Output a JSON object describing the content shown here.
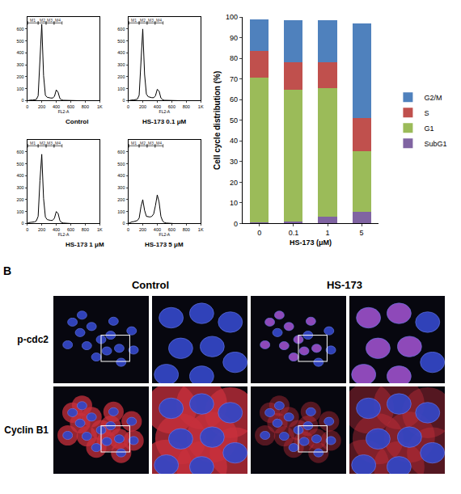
{
  "chart_data": [
    {
      "type": "line",
      "title": "Control",
      "x_label": "FL2-A",
      "color": "#000000",
      "x": [
        0,
        25,
        50,
        75,
        100,
        125,
        150,
        175,
        200,
        225,
        250,
        275,
        300,
        325,
        350,
        375,
        400,
        425,
        450,
        475,
        500,
        525,
        550,
        575,
        600,
        625,
        650,
        675,
        700,
        725,
        750,
        775,
        800,
        825,
        850,
        875,
        900,
        925,
        950,
        975,
        1000
      ],
      "values": [
        0,
        4,
        5,
        5,
        6,
        10,
        40,
        380,
        640,
        210,
        45,
        28,
        24,
        22,
        22,
        35,
        90,
        70,
        18,
        6,
        3,
        2,
        1,
        0,
        0,
        0,
        0,
        0,
        0,
        0,
        0,
        0,
        0,
        0,
        0,
        0,
        0,
        0,
        0,
        0,
        0
      ],
      "xlim": [
        0,
        1000
      ],
      "xticks": [
        0,
        200,
        400,
        600,
        800,
        {
          "value": 1000,
          "label": "1K"
        }
      ],
      "ylim": [
        0,
        700
      ],
      "yticks": [
        0,
        100,
        200,
        300,
        400,
        500,
        600
      ],
      "gates": [
        {
          "label": "M1",
          "x0": 10,
          "x1": 150
        },
        {
          "label": "M2",
          "x0": 150,
          "x1": 260
        },
        {
          "label": "M3",
          "x0": 260,
          "x1": 370
        },
        {
          "label": "M4",
          "x0": 370,
          "x1": 480
        }
      ]
    },
    {
      "type": "line",
      "title": "HS-173 0.1 μM",
      "x_label": "FL2-A",
      "color": "#000000",
      "x": [
        0,
        25,
        50,
        75,
        100,
        125,
        150,
        175,
        200,
        225,
        250,
        275,
        300,
        325,
        350,
        375,
        400,
        425,
        450,
        475,
        500,
        525,
        550,
        575,
        600,
        625,
        650,
        675,
        700,
        725,
        750,
        775,
        800,
        825,
        850,
        875,
        900,
        925,
        950,
        975,
        1000
      ],
      "values": [
        0,
        4,
        5,
        6,
        7,
        12,
        45,
        360,
        600,
        220,
        55,
        33,
        27,
        25,
        25,
        40,
        95,
        80,
        22,
        7,
        3,
        2,
        1,
        0,
        0,
        0,
        0,
        0,
        0,
        0,
        0,
        0,
        0,
        0,
        0,
        0,
        0,
        0,
        0,
        0,
        0
      ],
      "xlim": [
        0,
        1000
      ],
      "xticks": [
        0,
        200,
        400,
        600,
        800,
        {
          "value": 1000,
          "label": "1K"
        }
      ],
      "ylim": [
        0,
        700
      ],
      "yticks": [
        0,
        100,
        200,
        300,
        400,
        500,
        600
      ],
      "gates": [
        {
          "label": "M1",
          "x0": 10,
          "x1": 150
        },
        {
          "label": "M2",
          "x0": 150,
          "x1": 260
        },
        {
          "label": "M3",
          "x0": 260,
          "x1": 370
        },
        {
          "label": "M4",
          "x0": 370,
          "x1": 480
        }
      ]
    },
    {
      "type": "line",
      "title": "HS-173 1 μM",
      "x_label": "FL2-A",
      "color": "#000000",
      "x": [
        0,
        25,
        50,
        75,
        100,
        125,
        150,
        175,
        200,
        225,
        250,
        275,
        300,
        325,
        350,
        375,
        400,
        425,
        450,
        475,
        500,
        525,
        550,
        575,
        600,
        625,
        650,
        675,
        700,
        725,
        750,
        775,
        800,
        825,
        850,
        875,
        900,
        925,
        950,
        975,
        1000
      ],
      "values": [
        0,
        8,
        10,
        12,
        14,
        22,
        60,
        360,
        580,
        210,
        55,
        33,
        28,
        26,
        27,
        45,
        100,
        85,
        25,
        8,
        4,
        2,
        1,
        0,
        0,
        0,
        0,
        0,
        0,
        0,
        0,
        0,
        0,
        0,
        0,
        0,
        0,
        0,
        0,
        0,
        0
      ],
      "xlim": [
        0,
        1000
      ],
      "xticks": [
        0,
        200,
        400,
        600,
        800,
        {
          "value": 1000,
          "label": "1K"
        }
      ],
      "ylim": [
        0,
        700
      ],
      "yticks": [
        0,
        100,
        200,
        300,
        400,
        500,
        600
      ],
      "gates": [
        {
          "label": "M1",
          "x0": 10,
          "x1": 150
        },
        {
          "label": "M2",
          "x0": 150,
          "x1": 260
        },
        {
          "label": "M3",
          "x0": 260,
          "x1": 370
        },
        {
          "label": "M4",
          "x0": 370,
          "x1": 480
        }
      ]
    },
    {
      "type": "line",
      "title": "HS-173 5 μM",
      "x_label": "FL2-A",
      "color": "#000000",
      "x": [
        0,
        25,
        50,
        75,
        100,
        125,
        150,
        175,
        200,
        225,
        250,
        275,
        300,
        325,
        350,
        375,
        400,
        425,
        450,
        475,
        500,
        525,
        550,
        575,
        600,
        625,
        650,
        675,
        700,
        725,
        750,
        775,
        800,
        825,
        850,
        875,
        900,
        925,
        950,
        975,
        1000
      ],
      "values": [
        0,
        10,
        14,
        16,
        18,
        25,
        45,
        140,
        200,
        110,
        60,
        55,
        55,
        60,
        80,
        150,
        240,
        180,
        60,
        20,
        8,
        4,
        2,
        0,
        0,
        0,
        0,
        0,
        0,
        0,
        0,
        0,
        0,
        0,
        0,
        0,
        0,
        0,
        0,
        0,
        0
      ],
      "xlim": [
        0,
        1000
      ],
      "xticks": [
        0,
        200,
        400,
        600,
        800,
        {
          "value": 1000,
          "label": "1K"
        }
      ],
      "ylim": [
        0,
        700
      ],
      "yticks": [
        0,
        100,
        200,
        300,
        400,
        500,
        600
      ],
      "gates": [
        {
          "label": "M1",
          "x0": 10,
          "x1": 150
        },
        {
          "label": "M2",
          "x0": 150,
          "x1": 260
        },
        {
          "label": "M3",
          "x0": 260,
          "x1": 370
        },
        {
          "label": "M4",
          "x0": 370,
          "x1": 480
        }
      ]
    },
    {
      "type": "bar",
      "stacked": true,
      "x_label": "HS-173 (μM)",
      "y_label": "Cell cycle distribution (%)",
      "categories": [
        "0",
        "0.1",
        "1",
        "5"
      ],
      "series": [
        {
          "name": "SubG1",
          "color": "#8064a2",
          "values": [
            0.5,
            0.8,
            3.5,
            5.5
          ]
        },
        {
          "name": "G1",
          "color": "#9bbb59",
          "values": [
            70,
            64,
            62,
            29.5
          ]
        },
        {
          "name": "S",
          "color": "#c0504d",
          "values": [
            13,
            13.5,
            12.5,
            16
          ]
        },
        {
          "name": "G2/M",
          "color": "#4f81bd",
          "values": [
            15.5,
            20,
            20.5,
            46
          ]
        }
      ],
      "ylim": [
        0,
        100
      ],
      "yticks": [
        0,
        10,
        20,
        30,
        40,
        50,
        60,
        70,
        80,
        90,
        100
      ],
      "legend": "right"
    }
  ],
  "panel_b": {
    "label": "B",
    "columns": [
      "Control",
      "HS-173"
    ],
    "rows": [
      "p-cdc2",
      "Cyclin B1"
    ]
  }
}
